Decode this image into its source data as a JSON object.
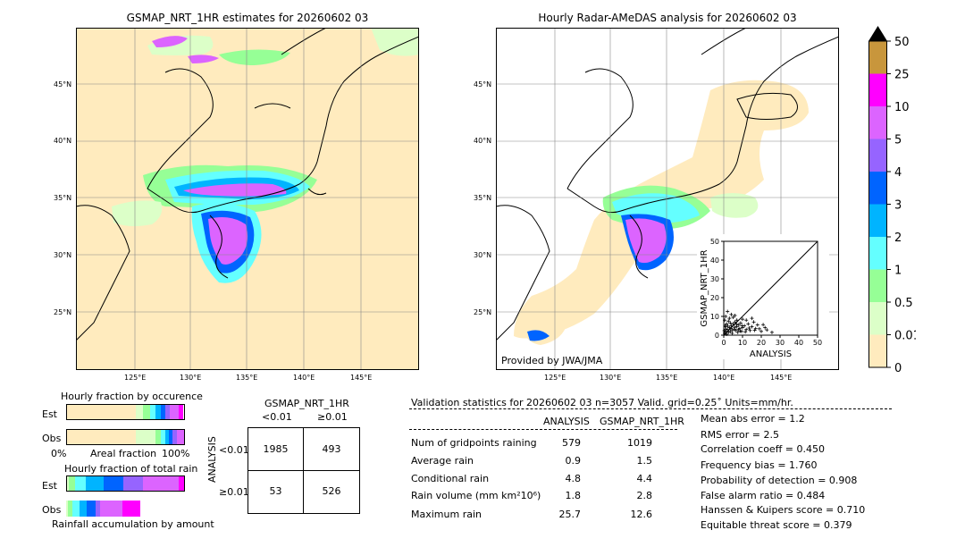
{
  "left_map": {
    "title": "GSMAP_NRT_1HR estimates for 20260602 03",
    "lat_labels": [
      "45°N",
      "40°N",
      "35°N",
      "30°N",
      "25°N"
    ],
    "lon_labels": [
      "125°E",
      "130°E",
      "135°E",
      "140°E",
      "145°E"
    ]
  },
  "right_map": {
    "title": "Hourly Radar-AMeDAS analysis for 20260602 03",
    "lat_labels": [
      "45°N",
      "40°N",
      "35°N",
      "30°N",
      "25°N"
    ],
    "lon_labels": [
      "125°E",
      "130°E",
      "135°E",
      "140°E",
      "145°E"
    ],
    "credit": "Provided by JWA/JMA"
  },
  "colorbar": {
    "labels": [
      "50",
      "25",
      "10",
      "5",
      "4",
      "3",
      "2",
      "1",
      "0.5",
      "0.01",
      "0"
    ],
    "colors": [
      "#c8963c",
      "#ff00ff",
      "#dc64ff",
      "#9664ff",
      "#0064ff",
      "#00b4ff",
      "#64ffff",
      "#96ff96",
      "#dcffc8",
      "#ffebbe"
    ],
    "over_color": "#000000"
  },
  "fraction_occurrence": {
    "title": "Hourly fraction by occurence",
    "rows": [
      "Est",
      "Obs"
    ],
    "axis_left": "0%",
    "axis_mid": "Areal fraction",
    "axis_right": "100%"
  },
  "fraction_total": {
    "title": "Hourly fraction of total rain",
    "rows": [
      "Est",
      "Obs"
    ],
    "footer": "Rainfall accumulation by amount"
  },
  "contingency": {
    "title": "GSMAP_NRT_1HR",
    "col_labels": [
      "<0.01",
      "≥0.01"
    ],
    "row_axis": "ANALYSIS",
    "row_labels": [
      "<0.01",
      "≥0.01"
    ],
    "cells": [
      [
        "1985",
        "493"
      ],
      [
        "53",
        "526"
      ]
    ]
  },
  "validation": {
    "header": "Validation statistics for 20260602 03   n=3057 Valid. grid=0.25˚ Units=mm/hr.",
    "col_analysis": "ANALYSIS",
    "col_gsmap": "GSMAP_NRT_1HR",
    "rows": [
      {
        "label": "Num of gridpoints raining",
        "analysis": "579",
        "gsmap": "1019"
      },
      {
        "label": "Average rain",
        "analysis": "0.9",
        "gsmap": "1.5"
      },
      {
        "label": "Conditional rain",
        "analysis": "4.8",
        "gsmap": "4.4"
      },
      {
        "label": "Rain volume (mm km²10⁶)",
        "analysis": "1.8",
        "gsmap": "2.8"
      },
      {
        "label": "Maximum rain",
        "analysis": "25.7",
        "gsmap": "12.6"
      }
    ],
    "scores": [
      "Mean abs error =    1.2",
      "RMS error =    2.5",
      "Correlation coeff =  0.450",
      "Frequency bias =  1.760",
      "Probability of detection =  0.908",
      "False alarm ratio =  0.484",
      "Hanssen & Kuipers score =  0.710",
      "Equitable threat score =  0.379"
    ]
  },
  "chart_data": {
    "type": "scatter",
    "xlabel": "ANALYSIS",
    "ylabel": "GSMAP_NRT_1HR",
    "xlim": [
      0,
      50
    ],
    "ylim": [
      0,
      50
    ],
    "x_ticks": [
      "0",
      "10",
      "20",
      "30",
      "40",
      "50"
    ],
    "y_ticks": [
      "0",
      "10",
      "20",
      "30",
      "40",
      "50"
    ],
    "points": [
      [
        0.5,
        1.0
      ],
      [
        1.0,
        2.0
      ],
      [
        1.5,
        0.5
      ],
      [
        2.0,
        3.0
      ],
      [
        2.5,
        1.5
      ],
      [
        3.0,
        4.0
      ],
      [
        3.5,
        2.0
      ],
      [
        4.0,
        5.0
      ],
      [
        4.5,
        1.0
      ],
      [
        5.0,
        6.0
      ],
      [
        5.5,
        3.0
      ],
      [
        6.0,
        7.0
      ],
      [
        6.5,
        2.5
      ],
      [
        7.0,
        4.5
      ],
      [
        7.5,
        1.5
      ],
      [
        8.0,
        5.5
      ],
      [
        8.5,
        3.5
      ],
      [
        9.0,
        6.5
      ],
      [
        9.5,
        2.0
      ],
      [
        10.0,
        4.0
      ],
      [
        11.0,
        5.0
      ],
      [
        12.0,
        3.0
      ],
      [
        13.0,
        6.0
      ],
      [
        14.0,
        2.5
      ],
      [
        15.0,
        4.5
      ],
      [
        16.0,
        7.0
      ],
      [
        17.0,
        3.5
      ],
      [
        18.0,
        5.5
      ],
      [
        20.0,
        2.0
      ],
      [
        22.0,
        4.0
      ],
      [
        25.7,
        1.5
      ],
      [
        0.5,
        8.0
      ],
      [
        1.0,
        10.0
      ],
      [
        2.0,
        12.6
      ],
      [
        3.0,
        9.0
      ],
      [
        4.0,
        11.0
      ],
      [
        1.5,
        6.0
      ],
      [
        2.5,
        7.5
      ],
      [
        0.8,
        4.5
      ],
      [
        12.0,
        8.0
      ],
      [
        15.0,
        9.0
      ],
      [
        10.0,
        8.5
      ],
      [
        5.0,
        9.5
      ],
      [
        6.0,
        10.5
      ],
      [
        7.0,
        8.0
      ],
      [
        3.5,
        6.5
      ],
      [
        1.2,
        3.2
      ],
      [
        0.3,
        2.4
      ],
      [
        0.7,
        5.2
      ],
      [
        2.2,
        4.8
      ],
      [
        3.8,
        3.6
      ],
      [
        4.6,
        2.8
      ],
      [
        5.8,
        4.2
      ],
      [
        6.8,
        5.8
      ],
      [
        7.8,
        3.0
      ],
      [
        8.8,
        2.2
      ],
      [
        9.8,
        5.0
      ],
      [
        11.5,
        1.8
      ],
      [
        13.5,
        3.8
      ],
      [
        16.5,
        2.6
      ],
      [
        19.0,
        3.4
      ],
      [
        21.0,
        5.6
      ],
      [
        23.0,
        2.8
      ]
    ]
  }
}
